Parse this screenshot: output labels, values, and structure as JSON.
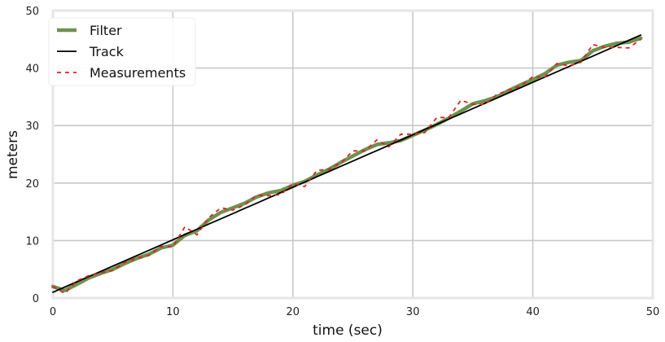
{
  "colors": {
    "filter": "#6f9150",
    "track": "#000000",
    "measurements": "#e0201b",
    "grid": "#c8c8c8",
    "frame": "#e6e6e6"
  },
  "chart_data": {
    "type": "line",
    "title": "",
    "xlabel": "time (sec)",
    "ylabel": "meters",
    "xlim": [
      0,
      50
    ],
    "ylim": [
      0,
      50
    ],
    "xticks": [
      0,
      10,
      20,
      30,
      40,
      50
    ],
    "yticks": [
      0,
      10,
      20,
      30,
      40,
      50
    ],
    "grid": true,
    "legend_position": "top-left",
    "x": [
      0,
      1,
      2,
      3,
      4,
      5,
      6,
      7,
      8,
      9,
      10,
      11,
      12,
      13,
      14,
      15,
      16,
      17,
      18,
      19,
      20,
      21,
      22,
      23,
      24,
      25,
      26,
      27,
      28,
      29,
      30,
      31,
      32,
      33,
      34,
      35,
      36,
      37,
      38,
      39,
      40,
      41,
      42,
      43,
      44,
      45,
      46,
      47,
      48,
      49
    ],
    "series": [
      {
        "name": "Filter",
        "style": "thick-solid",
        "values": [
          2.0,
          1.3,
          2.4,
          3.5,
          4.3,
          5.0,
          6.0,
          6.9,
          7.6,
          8.7,
          9.2,
          10.9,
          11.7,
          13.6,
          14.9,
          15.7,
          16.5,
          17.6,
          18.3,
          18.7,
          19.6,
          20.3,
          21.4,
          22.4,
          23.6,
          24.7,
          25.8,
          26.7,
          27.0,
          27.4,
          28.3,
          29.2,
          30.2,
          31.3,
          32.5,
          33.8,
          34.3,
          35.0,
          36.1,
          37.1,
          38.0,
          39.0,
          40.5,
          41.0,
          41.3,
          43.0,
          43.8,
          44.3,
          44.5,
          45.2
        ]
      },
      {
        "name": "Track",
        "style": "solid",
        "values": [
          1.0,
          1.913,
          2.826,
          3.739,
          4.652,
          5.565,
          6.478,
          7.391,
          8.304,
          9.217,
          10.13,
          11.043,
          11.956,
          12.869,
          13.782,
          14.695,
          15.608,
          16.521,
          17.434,
          18.347,
          19.26,
          20.173,
          21.086,
          21.999,
          22.912,
          23.825,
          24.738,
          25.651,
          26.564,
          27.477,
          28.39,
          29.303,
          30.216,
          31.129,
          32.042,
          32.955,
          33.868,
          34.781,
          35.694,
          36.607,
          37.52,
          38.433,
          39.346,
          40.259,
          41.172,
          42.085,
          42.998,
          43.911,
          44.824,
          45.737
        ]
      },
      {
        "name": "Measurements",
        "style": "dashed",
        "values": [
          2.0,
          0.8,
          3.0,
          3.9,
          4.4,
          4.8,
          6.2,
          6.9,
          7.4,
          9.0,
          8.9,
          12.4,
          11.0,
          14.0,
          15.7,
          15.3,
          16.2,
          17.9,
          17.8,
          18.0,
          19.9,
          19.4,
          22.2,
          22.4,
          23.5,
          25.6,
          25.6,
          27.5,
          26.3,
          28.5,
          28.5,
          28.8,
          31.4,
          31.4,
          34.4,
          33.7,
          33.7,
          35.4,
          36.2,
          36.9,
          38.5,
          38.4,
          40.8,
          40.4,
          41.0,
          44.1,
          43.6,
          43.6,
          43.5,
          45.0
        ]
      }
    ]
  }
}
